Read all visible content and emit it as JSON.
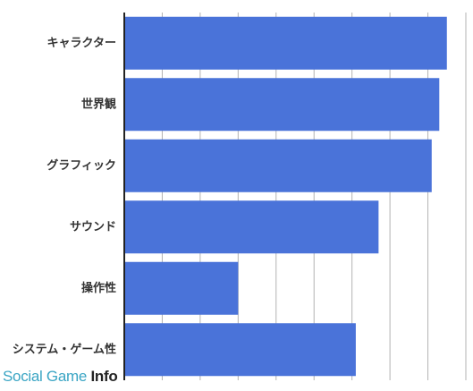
{
  "chart_data": {
    "type": "bar",
    "orientation": "horizontal",
    "categories": [
      "キャラクター",
      "世界観",
      "グラフィック",
      "サウンド",
      "操作性",
      "システム・ゲーム性"
    ],
    "values": [
      8.5,
      8.3,
      8.1,
      6.7,
      3.0,
      6.1
    ],
    "xlim": [
      0,
      9
    ],
    "grid": true,
    "bar_color": "#4a73d9",
    "grid_color": "#b3b3b3",
    "axis_color": "#222222"
  },
  "watermark": {
    "part1": "Social Game ",
    "part2": "Info"
  }
}
